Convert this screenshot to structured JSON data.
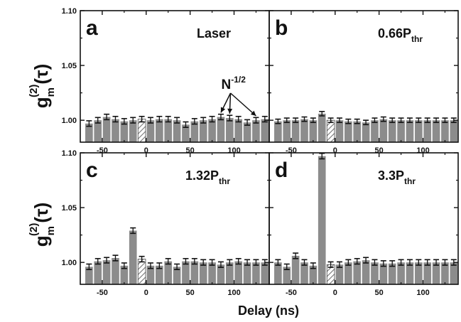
{
  "figure": {
    "ylabel": {
      "main": "g",
      "sub": "m",
      "sup": "(2)",
      "arg": "(τ)"
    },
    "xlabel": "Delay (ns)"
  },
  "chart_data": [
    {
      "type": "bar",
      "panel": "a",
      "label": "Laser",
      "annotation": {
        "text": "N",
        "sup": "-1/2"
      },
      "x": [
        -65,
        -55,
        -45,
        -35,
        -25,
        -15,
        -5,
        5,
        15,
        25,
        35,
        45,
        55,
        65,
        75,
        85,
        95,
        105,
        115,
        125,
        135
      ],
      "values": [
        0.997,
        1.0,
        1.003,
        1.001,
        0.999,
        1.0,
        1.001,
        1.0,
        1.001,
        1.001,
        1.0,
        0.996,
        0.999,
        1.0,
        1.001,
        1.003,
        1.002,
        1.001,
        0.998,
        1.0,
        1.001
      ],
      "errors": 0.0025,
      "highlight_x": 0,
      "xlim": [
        -75,
        140
      ],
      "ylim": [
        0.98,
        1.1
      ],
      "yticks": [
        "1.00",
        "1.05",
        "1.10"
      ],
      "xticks": [
        "-50",
        "0",
        "50",
        "100"
      ]
    },
    {
      "type": "bar",
      "panel": "b",
      "label": "0.66P",
      "label_sub": "thr",
      "x": [
        -65,
        -55,
        -45,
        -35,
        -25,
        -15,
        -5,
        5,
        15,
        25,
        35,
        45,
        55,
        65,
        75,
        85,
        95,
        105,
        115,
        125,
        135
      ],
      "values": [
        0.999,
        1.0,
        1.0,
        1.001,
        1.0,
        1.006,
        1.0,
        1.0,
        0.999,
        0.999,
        0.998,
        1.0,
        1.001,
        1.0,
        1.0,
        1.0,
        1.0,
        1.0,
        1.0,
        1.0,
        1.0
      ],
      "errors": 0.002,
      "highlight_x": 0,
      "xlim": [
        -75,
        140
      ],
      "ylim": [
        0.98,
        1.1
      ],
      "yticks": [
        "1.00",
        "1.05",
        "1.10"
      ],
      "xticks": [
        "-50",
        "0",
        "50",
        "100"
      ]
    },
    {
      "type": "bar",
      "panel": "c",
      "label": "1.32P",
      "label_sub": "thr",
      "x": [
        -65,
        -55,
        -45,
        -35,
        -25,
        -15,
        -5,
        5,
        15,
        25,
        35,
        45,
        55,
        65,
        75,
        85,
        95,
        105,
        115,
        125,
        135
      ],
      "values": [
        0.996,
        1.001,
        1.002,
        1.004,
        0.997,
        1.029,
        1.003,
        0.997,
        0.997,
        1.001,
        0.996,
        1.001,
        1.001,
        1.0,
        1.0,
        0.998,
        1.0,
        1.001,
        1.0,
        1.0,
        1.0
      ],
      "errors": 0.0025,
      "highlight_x": 0,
      "xlim": [
        -75,
        140
      ],
      "ylim": [
        0.98,
        1.1
      ],
      "yticks": [
        "1.00",
        "1.05",
        "1.10"
      ],
      "xticks": [
        "-50",
        "0",
        "50",
        "100"
      ]
    },
    {
      "type": "bar",
      "panel": "d",
      "label": "3.3P",
      "label_sub": "thr",
      "x": [
        -65,
        -55,
        -45,
        -35,
        -25,
        -15,
        -5,
        5,
        15,
        25,
        35,
        45,
        55,
        65,
        75,
        85,
        95,
        105,
        115,
        125,
        135
      ],
      "values": [
        1.0,
        0.996,
        1.006,
        1.0,
        0.997,
        1.097,
        0.998,
        0.998,
        1.0,
        1.001,
        1.002,
        1.0,
        0.999,
        0.999,
        1.0,
        1.0,
        1.0,
        1.0,
        1.0,
        1.0,
        1.0
      ],
      "errors": 0.0025,
      "highlight_x": 0,
      "xlim": [
        -75,
        140
      ],
      "ylim": [
        0.98,
        1.1
      ],
      "yticks": [
        "1.00",
        "1.05",
        "1.10"
      ],
      "xticks": [
        "-50",
        "0",
        "50",
        "100"
      ]
    }
  ]
}
